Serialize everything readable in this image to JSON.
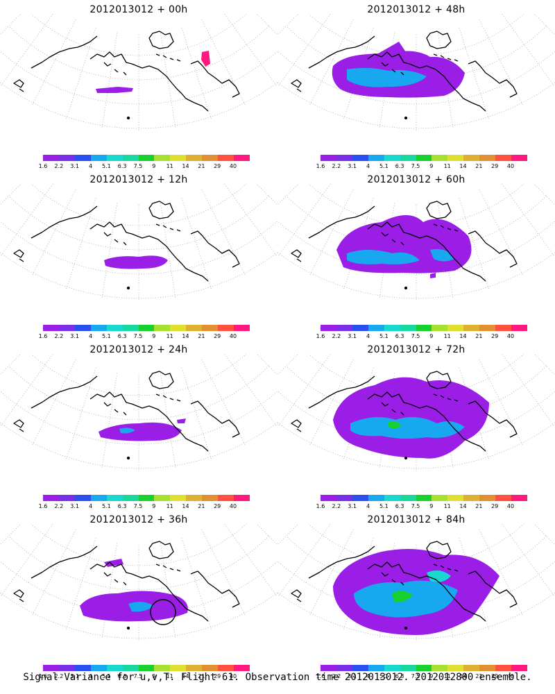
{
  "colorbar": {
    "labels": [
      "1.6",
      "2.2",
      "3.1",
      "4",
      "5.1",
      "6.3",
      "7.5",
      "9",
      "11",
      "14",
      "21",
      "29",
      "40"
    ],
    "colors": [
      "#9a1ee6",
      "#7a2ee8",
      "#2a4ff0",
      "#18a8f0",
      "#18d8d0",
      "#18d8a0",
      "#18d030",
      "#a8e030",
      "#e0e030",
      "#e0b030",
      "#e09030",
      "#ff5040",
      "#ff1880"
    ]
  },
  "panels": [
    {
      "title": "2012013012 + 00h",
      "level": 0
    },
    {
      "title": "2012013012 + 48h",
      "level": 4
    },
    {
      "title": "2012013012 + 12h",
      "level": 1
    },
    {
      "title": "2012013012 + 60h",
      "level": 5
    },
    {
      "title": "2012013012 + 24h",
      "level": 2
    },
    {
      "title": "2012013012 + 72h",
      "level": 6
    },
    {
      "title": "2012013012 + 36h",
      "level": 3
    },
    {
      "title": "2012013012 + 84h",
      "level": 7
    }
  ],
  "caption": "Signal Variance for u,v,T. Flight 61. Observation time 2012013012. 2012012800 ensemble."
}
